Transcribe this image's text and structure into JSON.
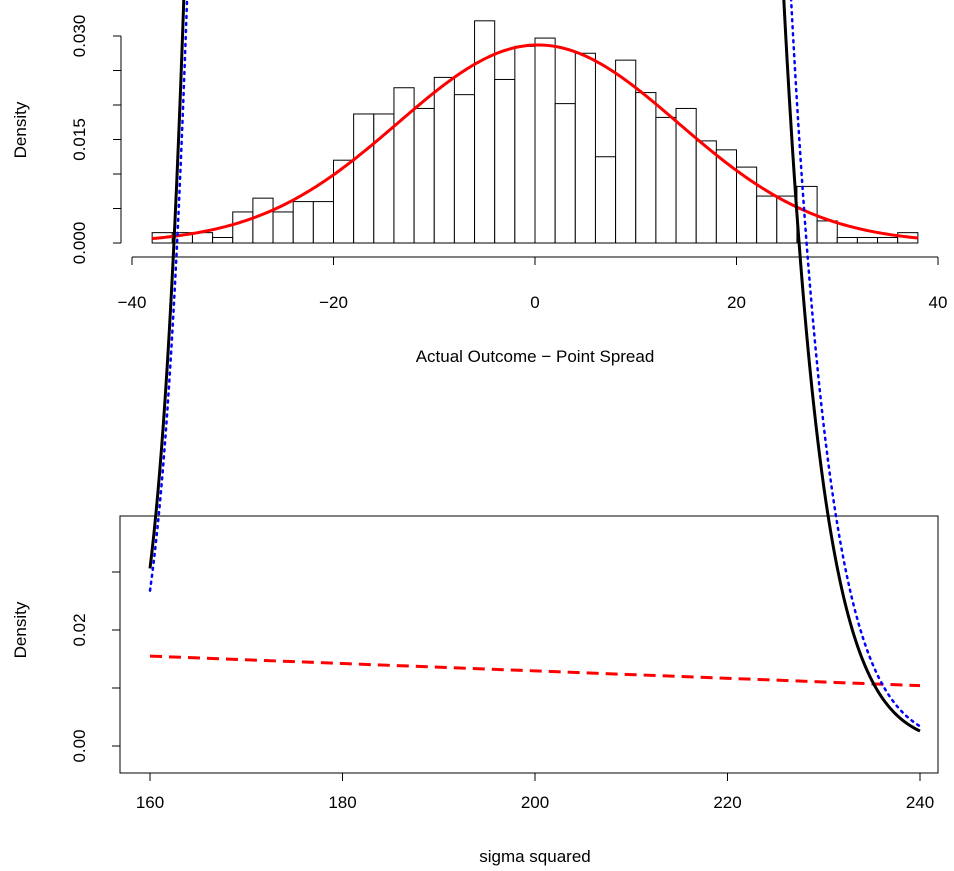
{
  "chart_data": [
    {
      "type": "bar",
      "subtype": "histogram",
      "xlabel": "Actual Outcome − Point Spread",
      "ylabel": "Density",
      "xlim": [
        -40,
        40
      ],
      "ylim": [
        0,
        0.032
      ],
      "x_ticks": [
        -40,
        -20,
        0,
        20,
        40
      ],
      "x_tick_labels": [
        "−40",
        "−20",
        "0",
        "20",
        "40"
      ],
      "y_ticks": [
        0.0,
        0.005,
        0.01,
        0.015,
        0.02,
        0.025,
        0.03
      ],
      "y_tick_labels": [
        "0.000",
        "",
        "",
        "0.015",
        "",
        "",
        "0.030"
      ],
      "bin_width": 2,
      "bin_start": -38,
      "values": [
        0.0015,
        0.0015,
        0.0015,
        0.0008,
        0.0045,
        0.0065,
        0.0045,
        0.006,
        0.006,
        0.012,
        0.0187,
        0.0187,
        0.0225,
        0.0195,
        0.024,
        0.0215,
        0.0322,
        0.0237,
        0.0285,
        0.0297,
        0.0202,
        0.0275,
        0.0125,
        0.0265,
        0.0218,
        0.0182,
        0.0195,
        0.0148,
        0.0135,
        0.011,
        0.0068,
        0.0068,
        0.0082,
        0.0032,
        0.0008,
        0.0008,
        0.0008,
        0.0015
      ],
      "curve": {
        "name": "normal density",
        "color": "#ff0000",
        "dash": "solid",
        "mean": 0.3,
        "sd": 13.9
      },
      "grid": false,
      "box": false
    },
    {
      "type": "line",
      "xlabel": "sigma squared",
      "ylabel": "Density",
      "xlim": [
        160,
        240
      ],
      "ylim": [
        0,
        0.038
      ],
      "x_ticks": [
        160,
        180,
        200,
        220,
        240
      ],
      "x_tick_labels": [
        "160",
        "180",
        "200",
        "220",
        "240"
      ],
      "y_ticks": [
        0.0,
        0.01,
        0.02,
        0.03
      ],
      "y_tick_labels": [
        "0.00",
        "",
        "0.02",
        ""
      ],
      "series": [
        {
          "color": "#ff0000",
          "dash": "dashed",
          "x": [
            160,
            240
          ],
          "y": [
            0.0155,
            0.0104
          ]
        },
        {
          "color": "#000000",
          "dash": "solid",
          "shape": "inverse-gamma",
          "alpha": 360.5,
          "beta": 69168
        },
        {
          "color": "#0000ff",
          "dash": "dotted",
          "shape": "inverse-gamma",
          "alpha": 356,
          "beta": 68490
        }
      ],
      "grid": false,
      "box": true
    }
  ]
}
